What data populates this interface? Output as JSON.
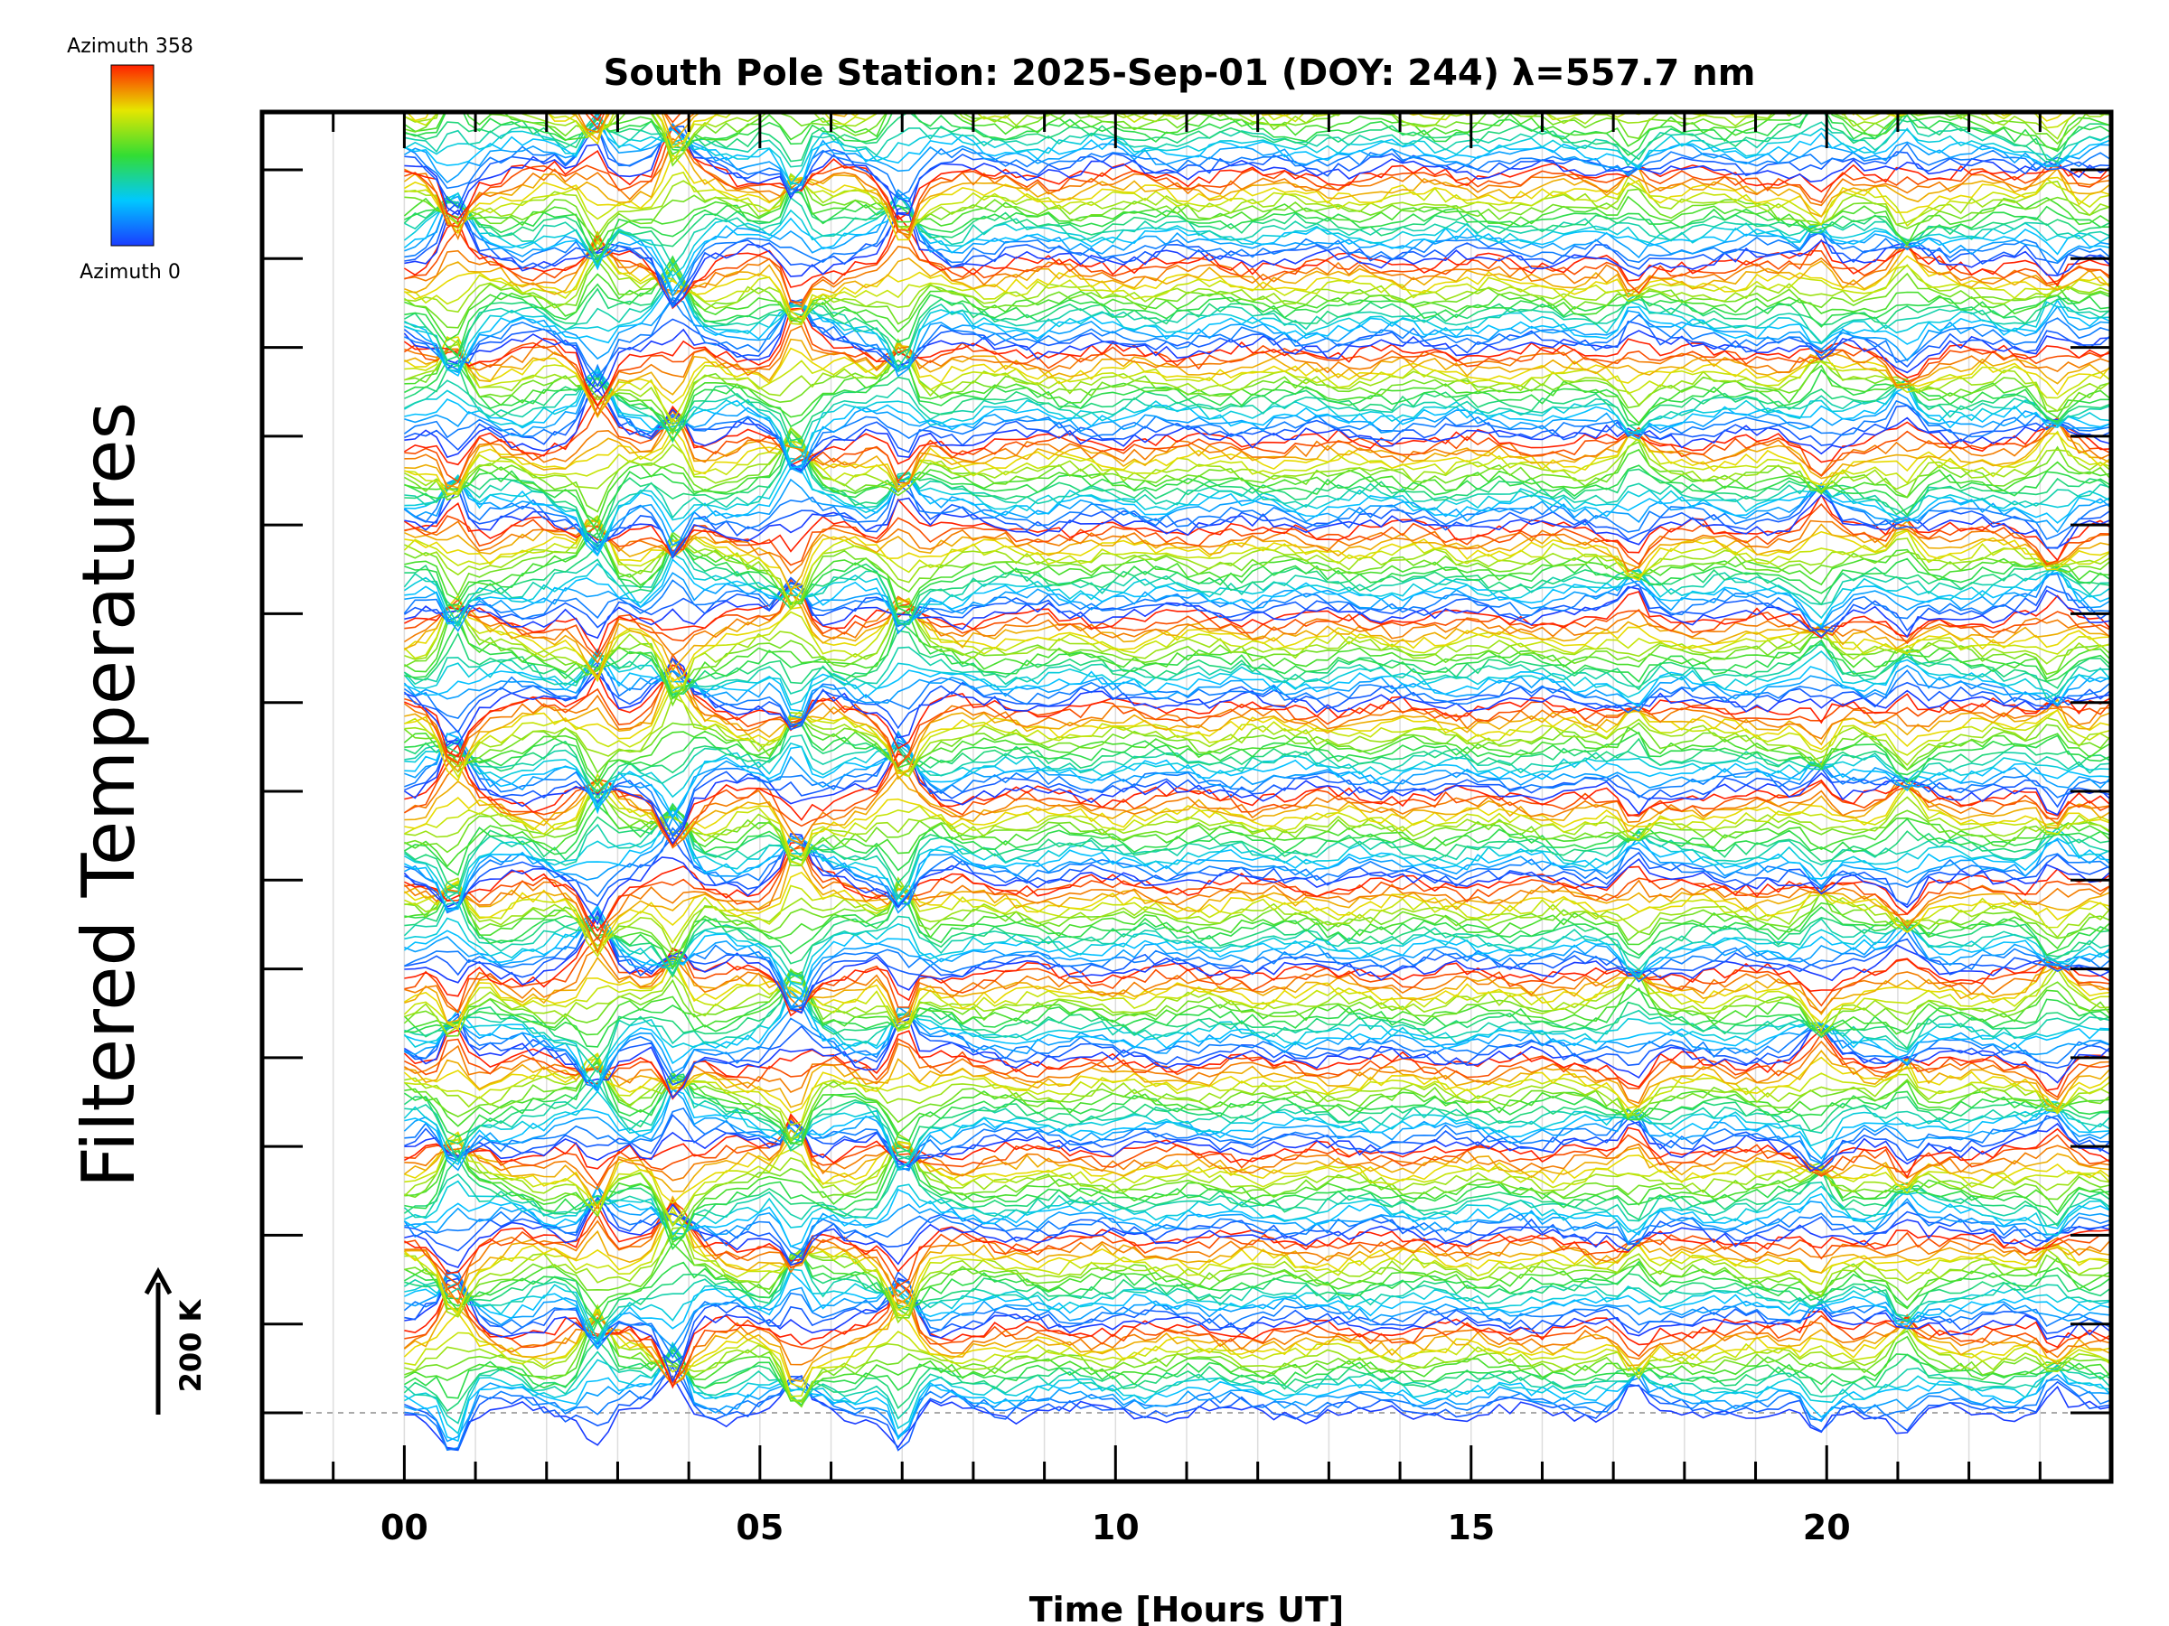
{
  "chart_data": {
    "type": "line",
    "title": "South Pole Station: 2025-Sep-01 (DOY: 244) λ=557.7 nm",
    "xlabel": "Time [Hours UT]",
    "ylabel": "Filtered Temperatures",
    "xlim": [
      -2,
      24
    ],
    "x_ticks": [
      "00",
      "05",
      "10",
      "15",
      "20"
    ],
    "x_tick_values": [
      0,
      5,
      10,
      15,
      20
    ],
    "stack_rows": 15,
    "traces_per_row": 18,
    "trace_offset_k": 31,
    "trace_time_range": [
      0,
      24
    ],
    "colormap": "rainbow (blue → cyan → green → yellow → red)",
    "colorbar": {
      "top_label": "Azimuth 358",
      "bottom_label": "Azimuth 0",
      "min": 0,
      "max": 358,
      "colors": [
        "#1a3cff",
        "#00c8ff",
        "#33dd33",
        "#e6e600",
        "#ff2000"
      ]
    },
    "scale_bar": {
      "label": "200 K",
      "value_k": 200
    },
    "grid": true,
    "legend": "colorbar top-left"
  }
}
